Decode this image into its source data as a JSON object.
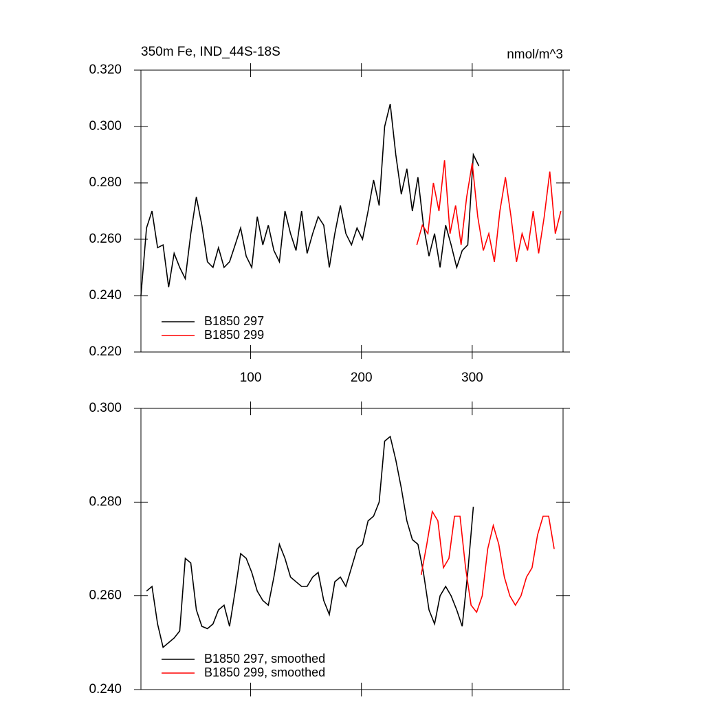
{
  "chart_data": [
    {
      "type": "line",
      "title": "350m Fe, IND_44S-18S",
      "units": "nmol/m^3",
      "xlim": [
        1,
        382
      ],
      "xticks": [
        100,
        200,
        300
      ],
      "xtick_labels": true,
      "ylim": [
        0.22,
        0.32
      ],
      "yticks": [
        {
          "value": 0.22,
          "label": "0.220"
        },
        {
          "value": 0.24,
          "label": "0.240"
        },
        {
          "value": 0.26,
          "label": "0.260"
        },
        {
          "value": 0.28,
          "label": "0.280"
        },
        {
          "value": 0.3,
          "label": "0.300"
        },
        {
          "value": 0.32,
          "label": "0.320"
        }
      ],
      "legend": "lower left",
      "series": [
        {
          "name": "B1850 297",
          "color": "#000000",
          "x": [
            1,
            6,
            11,
            16,
            21,
            26,
            31,
            36,
            41,
            46,
            51,
            56,
            61,
            66,
            71,
            76,
            81,
            86,
            91,
            96,
            101,
            106,
            111,
            116,
            121,
            126,
            131,
            136,
            141,
            146,
            151,
            156,
            161,
            166,
            171,
            176,
            181,
            186,
            191,
            196,
            201,
            206,
            211,
            216,
            221,
            226,
            231,
            236,
            241,
            246,
            251,
            256,
            261,
            266,
            271,
            276,
            281,
            286,
            291,
            296,
            301,
            306
          ],
          "values": [
            0.24,
            0.264,
            0.27,
            0.257,
            0.258,
            0.243,
            0.255,
            0.25,
            0.246,
            0.262,
            0.275,
            0.265,
            0.252,
            0.25,
            0.257,
            0.25,
            0.252,
            0.258,
            0.264,
            0.254,
            0.25,
            0.268,
            0.258,
            0.265,
            0.256,
            0.252,
            0.27,
            0.262,
            0.256,
            0.27,
            0.255,
            0.262,
            0.268,
            0.265,
            0.25,
            0.262,
            0.272,
            0.262,
            0.258,
            0.264,
            0.26,
            0.27,
            0.281,
            0.272,
            0.3,
            0.308,
            0.29,
            0.276,
            0.285,
            0.27,
            0.282,
            0.265,
            0.254,
            0.262,
            0.25,
            0.265,
            0.258,
            0.25,
            0.256,
            0.258,
            0.29,
            0.286
          ]
        },
        {
          "name": "B1850 299",
          "color": "#ff0000",
          "x": [
            250,
            255,
            260,
            265,
            270,
            275,
            280,
            285,
            290,
            295,
            300,
            305,
            310,
            315,
            320,
            325,
            330,
            335,
            340,
            345,
            350,
            355,
            360,
            365,
            370,
            375,
            380
          ],
          "values": [
            0.258,
            0.265,
            0.262,
            0.28,
            0.27,
            0.288,
            0.262,
            0.272,
            0.258,
            0.275,
            0.287,
            0.268,
            0.256,
            0.262,
            0.252,
            0.27,
            0.282,
            0.268,
            0.252,
            0.262,
            0.256,
            0.27,
            0.255,
            0.268,
            0.284,
            0.262,
            0.27
          ]
        }
      ]
    },
    {
      "type": "line",
      "xlim": [
        1,
        382
      ],
      "xticks": [
        100,
        200,
        300
      ],
      "xtick_labels": false,
      "ylim": [
        0.24,
        0.3
      ],
      "yticks": [
        {
          "value": 0.24,
          "label": "0.240"
        },
        {
          "value": 0.26,
          "label": "0.260"
        },
        {
          "value": 0.28,
          "label": "0.280"
        },
        {
          "value": 0.3,
          "label": "0.300"
        }
      ],
      "legend": "lower left",
      "series": [
        {
          "name": "B1850 297, smoothed",
          "color": "#000000",
          "x": [
            6,
            11,
            16,
            21,
            26,
            31,
            36,
            41,
            46,
            51,
            56,
            61,
            66,
            71,
            76,
            81,
            86,
            91,
            96,
            101,
            106,
            111,
            116,
            121,
            126,
            131,
            136,
            141,
            146,
            151,
            156,
            161,
            166,
            171,
            176,
            181,
            186,
            191,
            196,
            201,
            206,
            211,
            216,
            221,
            226,
            231,
            236,
            241,
            246,
            251,
            256,
            261,
            266,
            271,
            276,
            281,
            286,
            291,
            296,
            301
          ],
          "values": [
            0.261,
            0.262,
            0.254,
            0.249,
            0.25,
            0.251,
            0.2525,
            0.268,
            0.267,
            0.257,
            0.2535,
            0.253,
            0.254,
            0.257,
            0.258,
            0.2535,
            0.261,
            0.269,
            0.268,
            0.265,
            0.261,
            0.259,
            0.258,
            0.264,
            0.271,
            0.268,
            0.264,
            0.263,
            0.262,
            0.262,
            0.264,
            0.265,
            0.259,
            0.256,
            0.263,
            0.264,
            0.262,
            0.266,
            0.27,
            0.271,
            0.276,
            0.277,
            0.28,
            0.293,
            0.294,
            0.289,
            0.283,
            0.276,
            0.272,
            0.271,
            0.265,
            0.257,
            0.254,
            0.26,
            0.262,
            0.26,
            0.257,
            0.2535,
            0.265,
            0.279
          ]
        },
        {
          "name": "B1850 299, smoothed",
          "color": "#ff0000",
          "x": [
            254,
            259,
            264,
            269,
            274,
            279,
            284,
            289,
            294,
            299,
            304,
            309,
            314,
            319,
            324,
            329,
            334,
            339,
            344,
            349,
            354,
            359,
            364,
            369,
            374
          ],
          "values": [
            0.2645,
            0.271,
            0.278,
            0.276,
            0.266,
            0.268,
            0.277,
            0.277,
            0.266,
            0.258,
            0.2565,
            0.26,
            0.27,
            0.275,
            0.271,
            0.264,
            0.26,
            0.258,
            0.26,
            0.264,
            0.266,
            0.273,
            0.277,
            0.277,
            0.27
          ]
        }
      ]
    }
  ]
}
